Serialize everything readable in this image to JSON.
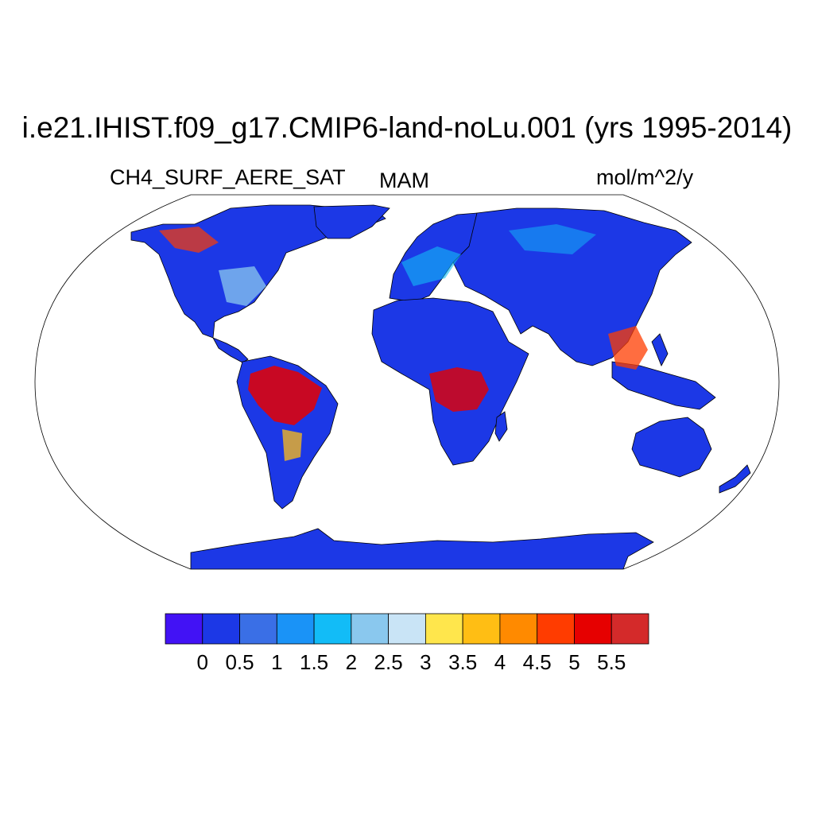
{
  "title": "i.e21.IHIST.f09_g17.CMIP6-land-noLu.001 (yrs 1995-2014)",
  "variable": "CH4_SURF_AERE_SAT",
  "season": "MAM",
  "units": "mol/m^2/y",
  "map": {
    "projection": "robinson",
    "ocean_color": "#ffffff",
    "coastline_color": "#000000"
  },
  "colorbar": {
    "colors": [
      "#4212f5",
      "#1c38e6",
      "#3a6fe6",
      "#1a93f7",
      "#12bcf7",
      "#8ac8ee",
      "#c9e4f6",
      "#ffe64c",
      "#ffbe14",
      "#ff8a00",
      "#ff3c00",
      "#e60000",
      "#d42a2a"
    ],
    "labels": [
      "0",
      "0.5",
      "1",
      "1.5",
      "2",
      "2.5",
      "3",
      "3.5",
      "4",
      "4.5",
      "5",
      "5.5"
    ]
  }
}
